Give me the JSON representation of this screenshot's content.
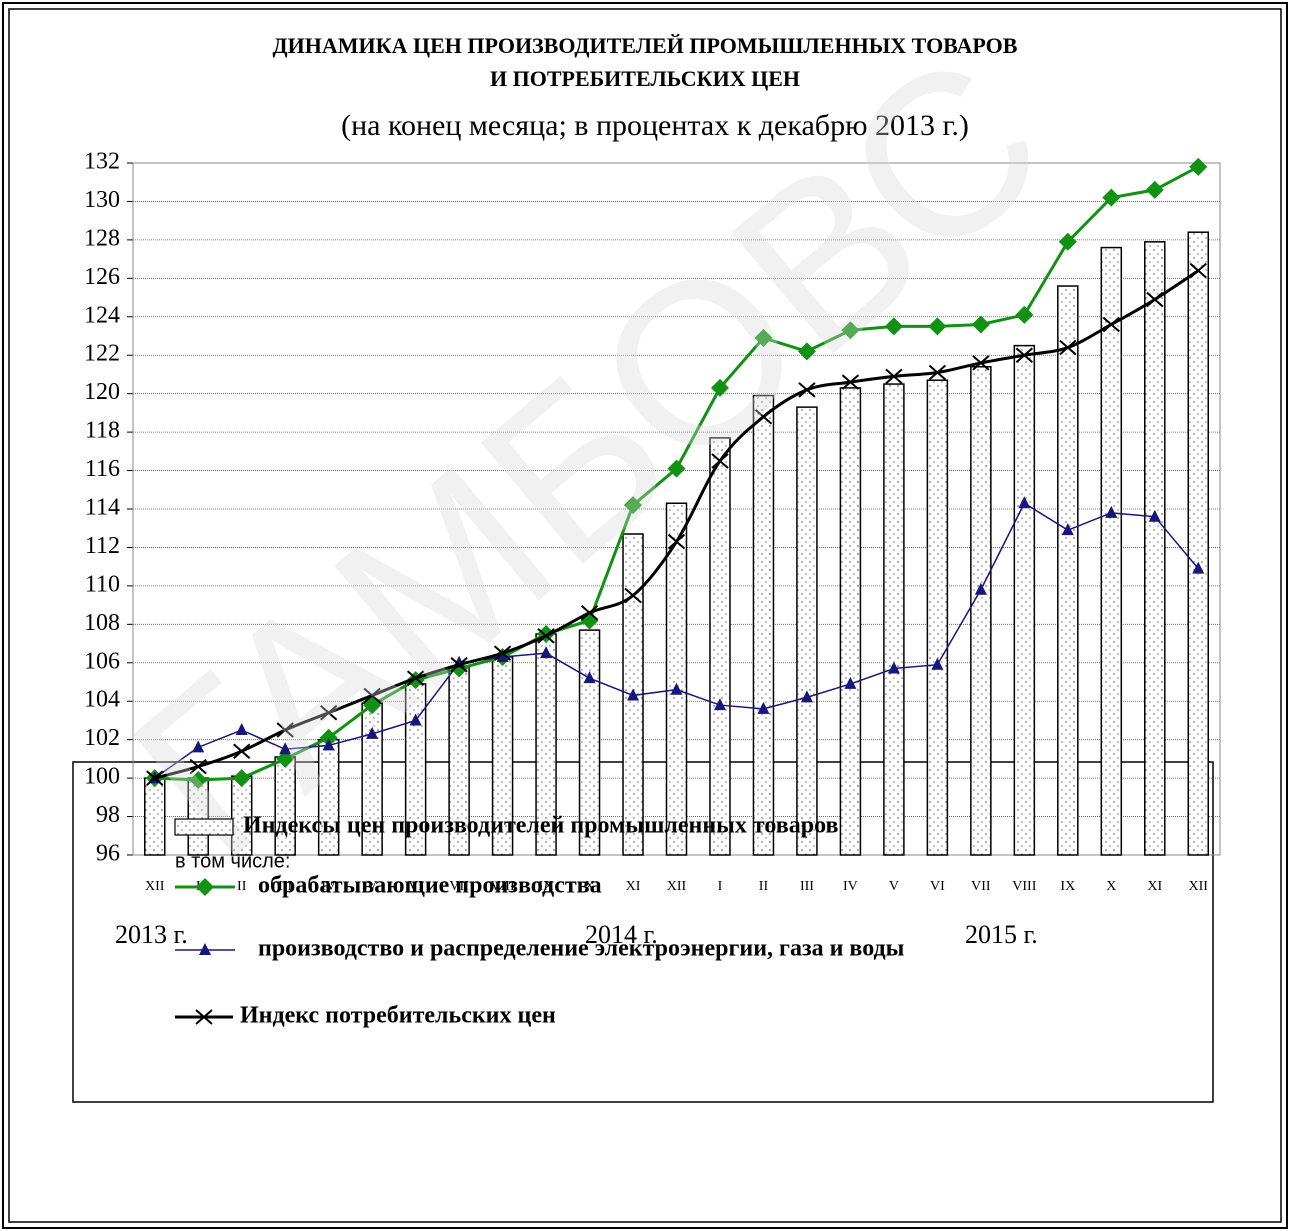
{
  "chart_data": {
    "type": "bar",
    "title": [
      "ДИНАМИКА ЦЕН ПРОИЗВОДИТЕЛЕЙ ПРОМЫШЛЕННЫХ ТОВАРОВ",
      "И ПОТРЕБИТЕЛЬСКИХ ЦЕН"
    ],
    "subtitle": "(на конец месяца; в процентах к декабрю 2013 г.)",
    "categories": [
      "XII",
      "I",
      "II",
      "III",
      "IV",
      "V",
      "VI",
      "VII",
      "VIII",
      "IX",
      "X",
      "XI",
      "XII",
      "I",
      "II",
      "III",
      "IV",
      "V",
      "VI",
      "VII",
      "VIII",
      "IX",
      "X",
      "XI",
      "XII"
    ],
    "year_labels": [
      "2013 г.",
      "2014 г.",
      "2015 г."
    ],
    "legend_note": "в том числе:",
    "watermark": "ГАМБОВС",
    "ylim": [
      96,
      132
    ],
    "yticks": [
      96,
      98,
      100,
      102,
      104,
      106,
      108,
      110,
      112,
      114,
      116,
      118,
      120,
      122,
      124,
      126,
      128,
      130,
      132
    ],
    "grid": true,
    "series": [
      {
        "name": "Индексы цен производителей промышленных товаров",
        "type": "bar",
        "color": "#000000",
        "values": [
          100.0,
          100.0,
          100.1,
          101.1,
          102.0,
          103.9,
          104.9,
          105.8,
          106.3,
          107.5,
          107.7,
          112.7,
          114.3,
          117.7,
          119.9,
          119.3,
          120.3,
          120.5,
          120.7,
          121.4,
          122.5,
          125.6,
          127.6,
          127.9,
          128.4
        ]
      },
      {
        "name": "обрабатывающие производства",
        "type": "line",
        "marker": "diamond",
        "color": "#129212",
        "values": [
          100.0,
          99.9,
          100.0,
          101.0,
          102.1,
          103.8,
          105.1,
          105.7,
          106.3,
          107.5,
          108.2,
          114.2,
          116.1,
          120.3,
          122.9,
          122.2,
          123.3,
          123.5,
          123.5,
          123.6,
          124.1,
          127.9,
          130.2,
          130.6,
          131.8
        ]
      },
      {
        "name": "производство и распределение электроэнергии, газа и воды",
        "type": "line",
        "marker": "triangle",
        "color": "#16167e",
        "values": [
          100.0,
          101.6,
          102.5,
          101.5,
          101.7,
          102.3,
          103.0,
          106.0,
          106.3,
          106.5,
          105.2,
          104.3,
          104.6,
          103.8,
          103.6,
          104.2,
          104.9,
          105.7,
          105.9,
          109.8,
          114.3,
          112.9,
          113.8,
          113.6,
          110.9
        ]
      },
      {
        "name": "Индекс потребительских цен",
        "type": "line",
        "marker": "x",
        "smooth": true,
        "color": "#000000",
        "values": [
          100.0,
          100.6,
          101.4,
          102.5,
          103.4,
          104.3,
          105.2,
          105.9,
          106.5,
          107.4,
          108.6,
          109.5,
          112.3,
          116.5,
          118.8,
          120.2,
          120.6,
          120.9,
          121.1,
          121.6,
          122.0,
          122.4,
          123.6,
          124.9,
          126.4
        ]
      }
    ]
  }
}
